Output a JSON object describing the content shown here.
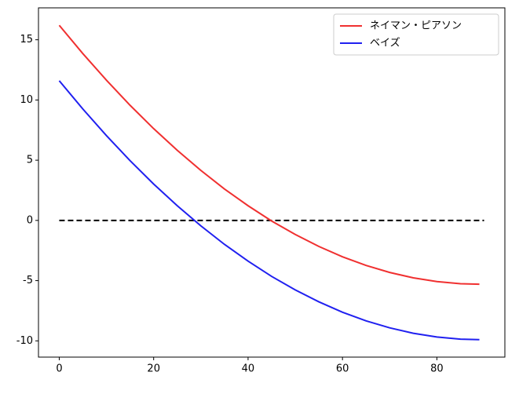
{
  "chart_data": {
    "type": "line",
    "x": [
      0,
      5,
      10,
      15,
      20,
      25,
      30,
      35,
      40,
      45,
      50,
      55,
      60,
      65,
      70,
      75,
      80,
      85,
      89
    ],
    "series": [
      {
        "name": "ネイマン・ピアソン",
        "color": "#f03030",
        "values": [
          16.2,
          13.85,
          11.64,
          9.56,
          7.62,
          5.82,
          4.15,
          2.61,
          1.22,
          -0.05,
          -1.17,
          -2.16,
          -3.02,
          -3.74,
          -4.32,
          -4.77,
          -5.08,
          -5.26,
          -5.3
        ]
      },
      {
        "name": "ベイズ",
        "color": "#2020f0",
        "values": [
          11.6,
          9.25,
          7.04,
          4.96,
          3.02,
          1.22,
          -0.45,
          -1.99,
          -3.38,
          -4.65,
          -5.77,
          -6.76,
          -7.62,
          -8.34,
          -8.92,
          -9.37,
          -9.68,
          -9.86,
          -9.9
        ]
      }
    ],
    "hline": {
      "y": 0,
      "xmin": 0,
      "xmax": 90,
      "color": "#000000",
      "dashed": true
    },
    "xlim": [
      -4.4,
      94.4
    ],
    "ylim": [
      -11.35,
      17.65
    ],
    "xticks": [
      0,
      20,
      40,
      60,
      80
    ],
    "yticks": [
      -10,
      -5,
      0,
      5,
      10,
      15
    ],
    "legend": "upper right",
    "grid": false
  }
}
